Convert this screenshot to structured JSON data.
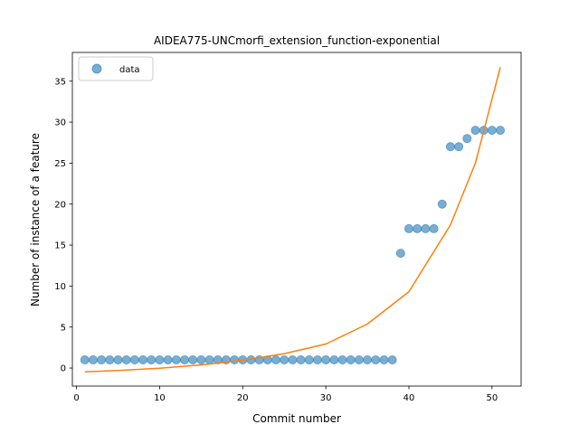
{
  "chart_data": {
    "type": "scatter",
    "title": "AIDEA775-UNCmorfi_extension_function-exponential",
    "xlabel": "Commit number",
    "ylabel": "Number of instance of a feature",
    "xlim": [
      -0.5,
      53.5
    ],
    "ylim": [
      -2.2,
      38.5
    ],
    "xticks": [
      0,
      10,
      20,
      30,
      40,
      50
    ],
    "yticks": [
      0,
      5,
      10,
      15,
      20,
      25,
      30,
      35
    ],
    "grid": false,
    "legend": {
      "placement": "top-left",
      "entries": [
        "data"
      ]
    },
    "colors": {
      "points": "#1f77b4",
      "fit": "#ff7f0e"
    },
    "series": [
      {
        "name": "data",
        "kind": "scatter",
        "x": [
          1,
          2,
          3,
          4,
          5,
          6,
          7,
          8,
          9,
          10,
          11,
          12,
          13,
          14,
          15,
          16,
          17,
          18,
          19,
          20,
          21,
          22,
          23,
          24,
          25,
          26,
          27,
          28,
          29,
          30,
          31,
          32,
          33,
          34,
          35,
          36,
          37,
          38,
          39,
          40,
          41,
          42,
          43,
          44,
          45,
          46,
          47,
          48,
          49,
          50,
          51
        ],
        "y": [
          1,
          1,
          1,
          1,
          1,
          1,
          1,
          1,
          1,
          1,
          1,
          1,
          1,
          1,
          1,
          1,
          1,
          1,
          1,
          1,
          1,
          1,
          1,
          1,
          1,
          1,
          1,
          1,
          1,
          1,
          1,
          1,
          1,
          1,
          1,
          1,
          1,
          1,
          14,
          17,
          17,
          17,
          17,
          20,
          27,
          27,
          28,
          29,
          29,
          29,
          29
        ]
      },
      {
        "kind": "line",
        "x": [
          1,
          5,
          10,
          15,
          20,
          25,
          30,
          35,
          40,
          45,
          48,
          51
        ],
        "y": [
          -0.46,
          -0.3,
          -0.02,
          0.38,
          0.95,
          1.76,
          2.93,
          5.37,
          9.31,
          17.46,
          25.0,
          36.7
        ]
      }
    ]
  }
}
